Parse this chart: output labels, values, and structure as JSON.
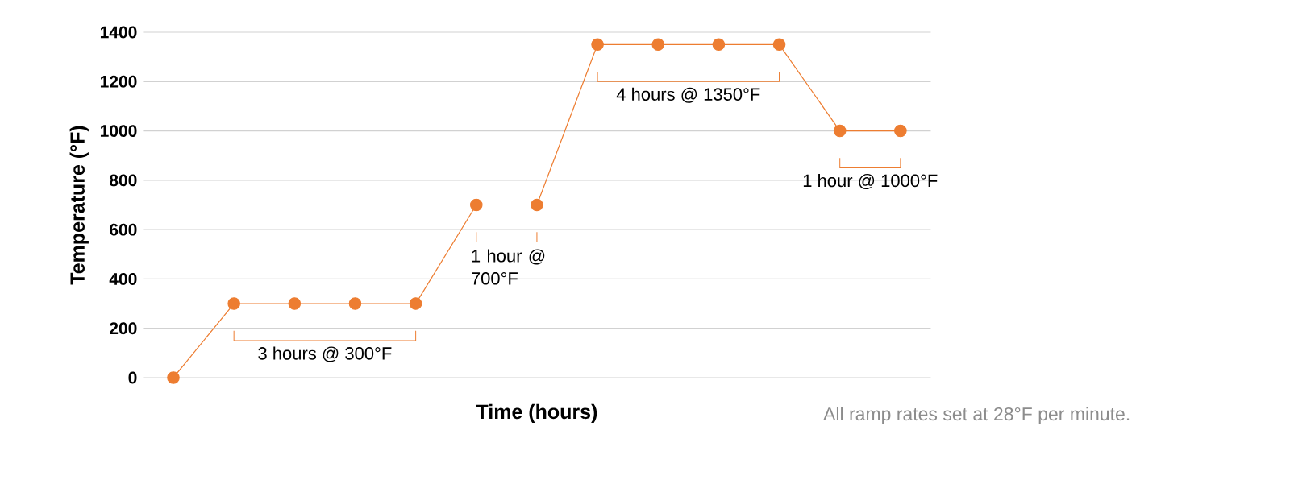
{
  "chart_data": {
    "type": "line",
    "xlabel": "Time (hours)",
    "ylabel": "Temperature (°F)",
    "categories": [
      null,
      null,
      null,
      null,
      null,
      null,
      null,
      null,
      null,
      null,
      null,
      null,
      null
    ],
    "series": [
      {
        "color": "#ed7d31",
        "values": [
          0,
          300,
          300,
          300,
          300,
          700,
          700,
          1350,
          1350,
          1350,
          1350,
          1000,
          1000
        ]
      }
    ],
    "ylim": [
      0,
      1400
    ],
    "yticks": [
      0,
      200,
      400,
      600,
      800,
      1000,
      1200,
      1400
    ],
    "grid": "y",
    "marker": "circle",
    "line_style": "solid",
    "tick_labels": "y",
    "annotations": [
      {
        "text": "3 hours @ 300°F",
        "y": 300
      },
      {
        "text": "1 hour @ 700°F",
        "y": 700
      },
      {
        "text": "4 hours @ 1350°F",
        "y": 1350
      },
      {
        "text": "1 hour @ 1000°F",
        "y": 1000
      },
      "All ramp rates set at 28°F per minute."
    ]
  }
}
